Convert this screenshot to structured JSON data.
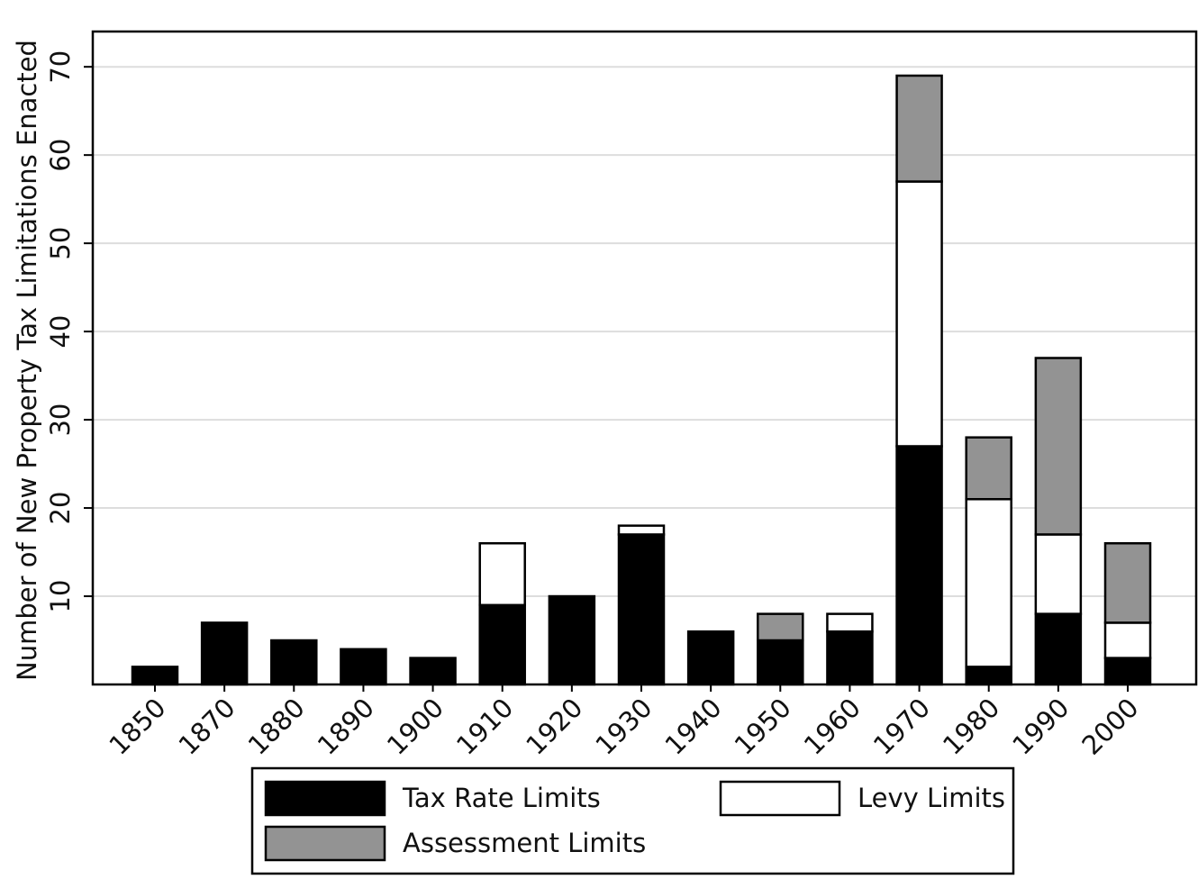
{
  "chart_data": {
    "type": "stacked_bar",
    "y_label": "Number of New Property Tax Limitations Enacted",
    "categories": [
      "1850",
      "1870",
      "1880",
      "1890",
      "1900",
      "1910",
      "1920",
      "1930",
      "1940",
      "1950",
      "1960",
      "1970",
      "1980",
      "1990",
      "2000"
    ],
    "series": [
      {
        "name": "Tax Rate Limits",
        "color": "#000000",
        "values": [
          2,
          7,
          5,
          4,
          3,
          9,
          10,
          17,
          6,
          5,
          6,
          27,
          2,
          8,
          3
        ]
      },
      {
        "name": "Levy Limits",
        "color": "#ffffff",
        "values": [
          0,
          0,
          0,
          0,
          0,
          7,
          0,
          1,
          0,
          0,
          2,
          30,
          19,
          9,
          4
        ]
      },
      {
        "name": "Assessment Limits",
        "color": "#939393",
        "values": [
          0,
          0,
          0,
          0,
          0,
          0,
          0,
          0,
          0,
          3,
          0,
          12,
          7,
          20,
          9
        ]
      }
    ],
    "ylim": [
      0,
      74
    ],
    "yticks": [
      10,
      20,
      30,
      40,
      50,
      60,
      70
    ],
    "grid": true
  }
}
